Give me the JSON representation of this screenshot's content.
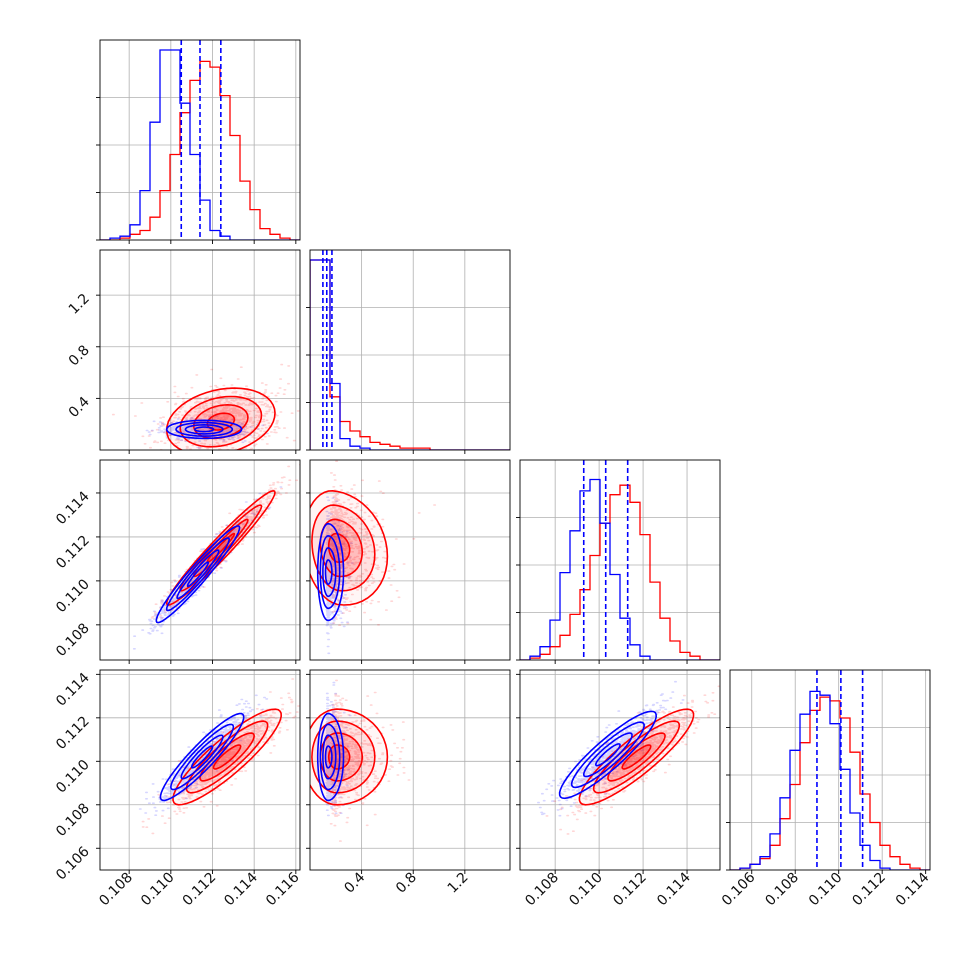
{
  "chart_data": {
    "type": "corner",
    "series": [
      {
        "name": "",
        "color": "#0000ff"
      },
      {
        "name": "",
        "color": "#ff0000"
      }
    ],
    "params": [
      {
        "index": 0,
        "range": [
          0.1066,
          0.1162
        ],
        "ticks": [
          "0.108",
          "0.110",
          "0.112",
          "0.114",
          "0.116"
        ]
      },
      {
        "index": 1,
        "range": [
          0.0,
          1.55
        ],
        "ticks": [
          "0.4",
          "0.8",
          "1.2"
        ]
      },
      {
        "index": 2,
        "range": [
          0.1064,
          0.1155
        ],
        "ticks": [
          "0.108",
          "0.110",
          "0.112",
          "0.114"
        ]
      },
      {
        "index": 3,
        "range": [
          0.105,
          0.1142
        ],
        "ticks": [
          "0.106",
          "0.108",
          "0.110",
          "0.112",
          "0.114"
        ]
      }
    ],
    "quantiles_blue": [
      {
        "param": 0,
        "values": [
          0.1105,
          0.1114,
          0.1124
        ]
      },
      {
        "param": 1,
        "values": [
          0.1,
          0.13,
          0.17
        ]
      },
      {
        "param": 2,
        "values": [
          0.1093,
          0.1103,
          0.1113
        ]
      },
      {
        "param": 3,
        "values": [
          0.109,
          0.1101,
          0.1111
        ]
      }
    ],
    "hist_1d": [
      {
        "param": 0,
        "blue": [
          0,
          1,
          2,
          8,
          26,
          62,
          100,
          100,
          72,
          45,
          21,
          5,
          2,
          0,
          0,
          0,
          0,
          0,
          0,
          0
        ],
        "red": [
          0,
          0,
          1,
          3,
          5,
          12,
          26,
          45,
          67,
          84,
          94,
          91,
          76,
          55,
          31,
          16,
          6,
          3,
          1,
          0
        ]
      },
      {
        "param": 1,
        "blue": [
          100,
          100,
          35,
          6,
          2,
          1,
          0,
          0,
          0,
          0,
          0,
          0,
          0,
          0,
          0,
          0,
          0,
          0,
          0,
          0
        ],
        "red": [
          100,
          100,
          28,
          15,
          10,
          7,
          4,
          3,
          2,
          1,
          1,
          1,
          0,
          0,
          0,
          0,
          0,
          0,
          0,
          0
        ]
      },
      {
        "param": 2,
        "blue": [
          0,
          2,
          7,
          21,
          46,
          68,
          89,
          95,
          72,
          45,
          22,
          8,
          2,
          0,
          0,
          0,
          0,
          0,
          0,
          0
        ],
        "red": [
          0,
          1,
          3,
          7,
          13,
          24,
          37,
          55,
          72,
          87,
          92,
          83,
          66,
          41,
          22,
          10,
          4,
          2,
          0,
          0
        ]
      },
      {
        "param": 3,
        "blue": [
          0,
          1,
          3,
          7,
          19,
          38,
          63,
          82,
          94,
          92,
          77,
          53,
          30,
          13,
          5,
          1,
          0,
          0,
          0,
          0
        ],
        "red": [
          0,
          1,
          3,
          6,
          13,
          27,
          45,
          67,
          84,
          91,
          89,
          80,
          62,
          40,
          25,
          13,
          7,
          3,
          1,
          0
        ]
      }
    ],
    "pairs": [
      {
        "x": 0,
        "y": 1,
        "blue": {
          "cx": 0.1116,
          "cy": 0.16,
          "sx": 0.0009,
          "sy": 0.035,
          "rho": 0.0
        },
        "red": {
          "cx": 0.1124,
          "cy": 0.22,
          "sx": 0.0013,
          "sy": 0.13,
          "rho": 0.25
        }
      },
      {
        "x": 0,
        "y": 2,
        "blue": {
          "cx": 0.1113,
          "cy": 0.1103,
          "sx": 0.001,
          "sy": 0.0011,
          "rho": 0.96
        },
        "red": {
          "cx": 0.1124,
          "cy": 0.1115,
          "sx": 0.0013,
          "sy": 0.0013,
          "rho": 0.97
        }
      },
      {
        "x": 0,
        "y": 3,
        "blue": {
          "cx": 0.1115,
          "cy": 0.1102,
          "sx": 0.001,
          "sy": 0.001,
          "rho": 0.92
        },
        "red": {
          "cx": 0.1127,
          "cy": 0.1102,
          "sx": 0.0013,
          "sy": 0.0011,
          "rho": 0.88
        }
      },
      {
        "x": 1,
        "y": 2,
        "blue": {
          "cx": 0.14,
          "cy": 0.1104,
          "sx": 0.04,
          "sy": 0.0011,
          "rho": 0.0
        },
        "red": {
          "cx": 0.21,
          "cy": 0.1115,
          "sx": 0.13,
          "sy": 0.0013,
          "rho": -0.15
        }
      },
      {
        "x": 1,
        "y": 3,
        "blue": {
          "cx": 0.14,
          "cy": 0.1102,
          "sx": 0.04,
          "sy": 0.001,
          "rho": 0.0
        },
        "red": {
          "cx": 0.21,
          "cy": 0.1102,
          "sx": 0.13,
          "sy": 0.0011,
          "rho": 0.0
        }
      },
      {
        "x": 2,
        "y": 3,
        "blue": {
          "cx": 0.1104,
          "cy": 0.1103,
          "sx": 0.0011,
          "sy": 0.001,
          "rho": 0.9
        },
        "red": {
          "cx": 0.1117,
          "cy": 0.1102,
          "sx": 0.0013,
          "sy": 0.0011,
          "rho": 0.88
        }
      }
    ],
    "grid": true,
    "legend": "none"
  }
}
